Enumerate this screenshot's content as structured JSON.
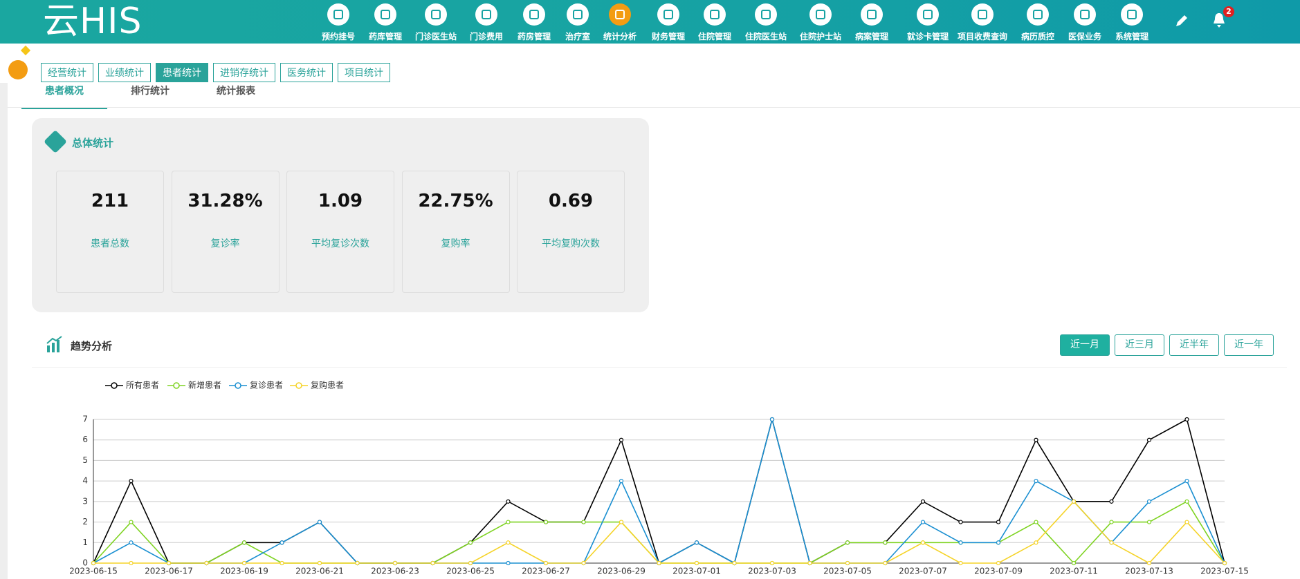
{
  "header": {
    "logo": "云HIS",
    "nav": [
      "预约挂号",
      "药库管理",
      "门诊医生站",
      "门诊费用",
      "药房管理",
      "治疗室",
      "统计分析",
      "财务管理",
      "住院管理",
      "住院医生站",
      "住院护士站",
      "病案管理",
      "就诊卡管理",
      "项目收费查询",
      "病历质控",
      "医保业务",
      "系统管理"
    ],
    "badge": "2"
  },
  "tabs": [
    "经营统计",
    "业绩统计",
    "患者统计",
    "进销存统计",
    "医务统计",
    "项目统计"
  ],
  "subtabs": [
    "患者概况",
    "排行统计",
    "统计报表"
  ],
  "overview": {
    "title": "总体统计",
    "cards": [
      {
        "value": "211",
        "label": "患者总数"
      },
      {
        "value": "31.28%",
        "label": "复诊率"
      },
      {
        "value": "1.09",
        "label": "平均复诊次数"
      },
      {
        "value": "22.75%",
        "label": "复购率"
      },
      {
        "value": "0.69",
        "label": "平均复购次数"
      }
    ]
  },
  "trend": {
    "title": "趋势分析",
    "ranges": [
      "近一月",
      "近三月",
      "近半年",
      "近一年"
    ]
  },
  "chart_data": {
    "type": "line",
    "categories": [
      "2023-06-15",
      null,
      "2023-06-17",
      null,
      "2023-06-19",
      null,
      "2023-06-21",
      null,
      "2023-06-23",
      null,
      "2023-06-25",
      null,
      "2023-06-27",
      null,
      "2023-06-29",
      null,
      "2023-07-01",
      null,
      "2023-07-03",
      null,
      "2023-07-05",
      null,
      "2023-07-07",
      null,
      "2023-07-09",
      null,
      "2023-07-11",
      null,
      "2023-07-13",
      null,
      "2023-07-15"
    ],
    "series": [
      {
        "name": "所有患者",
        "color": "#000000",
        "values": [
          0,
          4,
          0,
          0,
          1,
          1,
          2,
          0,
          0,
          0,
          1,
          3,
          2,
          2,
          6,
          0,
          1,
          0,
          7,
          0,
          1,
          1,
          3,
          2,
          2,
          6,
          3,
          3,
          6,
          7,
          0
        ]
      },
      {
        "name": "新增患者",
        "color": "#7ed321",
        "values": [
          0,
          2,
          0,
          0,
          1,
          0,
          0,
          0,
          0,
          0,
          1,
          2,
          2,
          2,
          2,
          0,
          0,
          0,
          0,
          0,
          1,
          1,
          1,
          1,
          1,
          2,
          0,
          2,
          2,
          3,
          0
        ]
      },
      {
        "name": "复诊患者",
        "color": "#1a8fd1",
        "values": [
          0,
          1,
          0,
          0,
          0,
          1,
          2,
          0,
          0,
          0,
          0,
          0,
          0,
          0,
          4,
          0,
          1,
          0,
          7,
          0,
          0,
          0,
          2,
          1,
          1,
          4,
          3,
          1,
          3,
          4,
          0
        ]
      },
      {
        "name": "复购患者",
        "color": "#f5d327",
        "values": [
          0,
          0,
          0,
          0,
          0,
          0,
          0,
          0,
          0,
          0,
          0,
          1,
          0,
          0,
          2,
          0,
          0,
          0,
          0,
          0,
          0,
          0,
          1,
          0,
          0,
          1,
          3,
          1,
          0,
          2,
          0
        ]
      }
    ],
    "ylim": [
      0,
      7
    ],
    "yticks": [
      0,
      1,
      2,
      3,
      4,
      5,
      6,
      7
    ],
    "grid": true,
    "legend": "top-left"
  }
}
